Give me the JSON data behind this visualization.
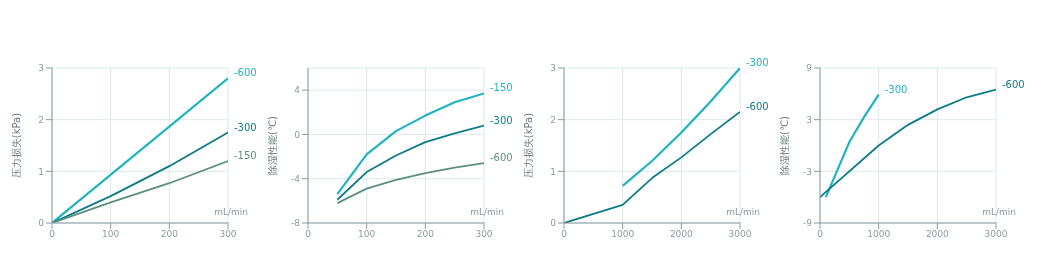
{
  "chart_data": [
    {
      "type": "line",
      "xlabel": "mL/min",
      "ylabel": "压力损失(kPa)",
      "xlim": [
        0,
        300
      ],
      "xticks": [
        0,
        100,
        200,
        300
      ],
      "ylim": [
        0,
        3
      ],
      "yticks": [
        0,
        1,
        2,
        3
      ],
      "grid": true,
      "series": [
        {
          "name": "-600",
          "color": "#1fb3c2",
          "x": [
            0,
            300
          ],
          "values": [
            0,
            2.8
          ]
        },
        {
          "name": "-300",
          "color": "#0c7b88",
          "x": [
            0,
            100,
            200,
            300
          ],
          "values": [
            0,
            0.52,
            1.1,
            1.75
          ]
        },
        {
          "name": "-150",
          "color": "#5b8f7e",
          "x": [
            0,
            100,
            200,
            300
          ],
          "values": [
            0,
            0.4,
            0.77,
            1.2
          ]
        }
      ]
    },
    {
      "type": "line",
      "xlabel": "mL/min",
      "ylabel": "除湿性能(℃)",
      "xlim": [
        0,
        300
      ],
      "xticks": [
        0,
        100,
        200,
        300
      ],
      "ylim": [
        -8,
        6
      ],
      "yticks": [
        -8,
        -4,
        0,
        4
      ],
      "grid": true,
      "series": [
        {
          "name": "-150",
          "color": "#1fb3c2",
          "x": [
            50,
            100,
            150,
            200,
            250,
            300
          ],
          "values": [
            -5.4,
            -1.8,
            0.3,
            1.7,
            2.9,
            3.7
          ]
        },
        {
          "name": "-300",
          "color": "#0c7b88",
          "x": [
            50,
            100,
            150,
            200,
            250,
            300
          ],
          "values": [
            -5.9,
            -3.4,
            -1.9,
            -0.7,
            0.1,
            0.8
          ]
        },
        {
          "name": "-600",
          "color": "#5b8f7e",
          "x": [
            50,
            100,
            150,
            200,
            250,
            300
          ],
          "values": [
            -6.2,
            -4.9,
            -4.1,
            -3.5,
            -3.0,
            -2.6
          ]
        }
      ]
    },
    {
      "type": "line",
      "xlabel": "mL/min",
      "ylabel": "压力损失(kPa)",
      "xlim": [
        0,
        3000
      ],
      "xticks": [
        0,
        1000,
        2000,
        3000
      ],
      "ylim": [
        0,
        3
      ],
      "yticks": [
        0,
        1,
        2,
        3
      ],
      "grid": true,
      "series": [
        {
          "name": "-300",
          "color": "#1fb3c2",
          "x": [
            1000,
            1500,
            2000,
            2500,
            3000
          ],
          "values": [
            0.72,
            1.2,
            1.75,
            2.35,
            3.0
          ]
        },
        {
          "name": "-600",
          "color": "#0c7b88",
          "x": [
            0,
            1000,
            1500,
            2000,
            2500,
            3000
          ],
          "values": [
            0,
            0.35,
            0.87,
            1.27,
            1.72,
            2.15
          ]
        }
      ]
    },
    {
      "type": "line",
      "xlabel": "mL/min",
      "ylabel": "除湿性能(℃)",
      "xlim": [
        0,
        3000
      ],
      "xticks": [
        0,
        1000,
        2000,
        3000
      ],
      "ylim": [
        -9,
        9
      ],
      "yticks": [
        -9,
        -3,
        3,
        9
      ],
      "grid": true,
      "series": [
        {
          "name": "-300",
          "color": "#1fb3c2",
          "x": [
            100,
            500,
            750,
            1000
          ],
          "values": [
            -6,
            0.4,
            3.3,
            5.9
          ]
        },
        {
          "name": "-600",
          "color": "#0c7b88",
          "x": [
            0,
            1000,
            1500,
            2000,
            2500,
            3000
          ],
          "values": [
            -6,
            0,
            2.4,
            4.2,
            5.6,
            6.5
          ]
        }
      ]
    }
  ]
}
